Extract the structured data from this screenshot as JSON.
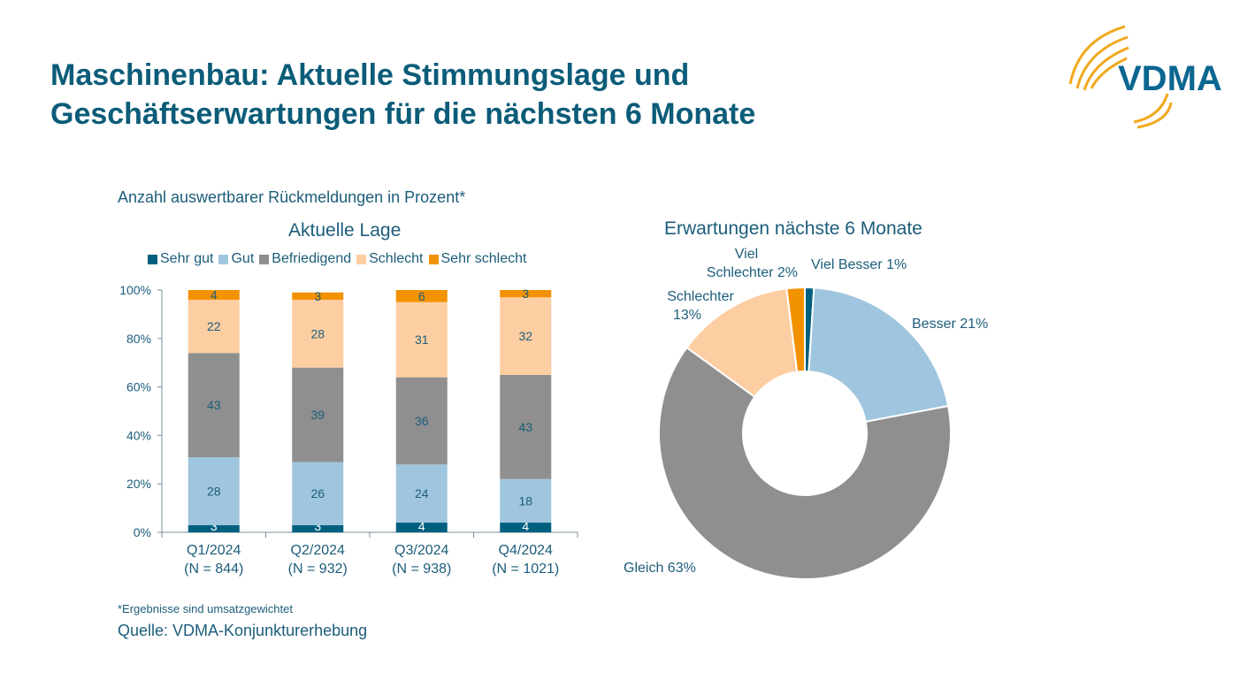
{
  "title_line1": "Maschinenbau: Aktuelle Stimmungslage und",
  "title_line2": "Geschäftserwartungen für die nächsten 6 Monate",
  "logo_text": "VDMA",
  "subtitle": "Anzahl auswertbarer Rückmeldungen in Prozent*",
  "footnote": "*Ergebnisse sind umsatzgewichtet",
  "source": "Quelle: VDMA-Konjunkturerhebung",
  "colors": {
    "sehr_gut": "#00607f",
    "gut": "#9fc6de",
    "befriedigend": "#8f8f8f",
    "schlecht": "#fdcea2",
    "sehr_schlecht": "#f39200",
    "text": "#1c5d7a",
    "title": "#0b5c78",
    "logo_arc": "#f0a81c"
  },
  "chart_data": [
    {
      "type": "bar",
      "stacked": true,
      "title": "Aktuelle Lage",
      "categories": [
        "Q1/2024",
        "Q2/2024",
        "Q3/2024",
        "Q4/2024"
      ],
      "category_sublabels": [
        "(N = 844)",
        "(N = 932)",
        "(N = 938)",
        "(N = 1021)"
      ],
      "ylim": [
        0,
        100
      ],
      "yticks": [
        "0%",
        "20%",
        "40%",
        "60%",
        "80%",
        "100%"
      ],
      "legend_placement": "top",
      "grid": false,
      "series": [
        {
          "name": "Sehr gut",
          "values": [
            3,
            3,
            4,
            4
          ]
        },
        {
          "name": "Gut",
          "values": [
            28,
            26,
            24,
            18
          ]
        },
        {
          "name": "Befriedigend",
          "values": [
            43,
            39,
            36,
            43
          ]
        },
        {
          "name": "Schlecht",
          "values": [
            22,
            28,
            31,
            32
          ]
        },
        {
          "name": "Sehr schlecht",
          "values": [
            4,
            3,
            6,
            3
          ]
        }
      ]
    },
    {
      "type": "pie",
      "donut": true,
      "title": "Erwartungen nächste 6 Monate",
      "slices": [
        {
          "label": "Viel Besser 1%",
          "value": 1
        },
        {
          "label": "Besser 21%",
          "value": 21
        },
        {
          "label": "Gleich  63%",
          "value": 63
        },
        {
          "label": "Schlechter 13%",
          "value": 13
        },
        {
          "label": "Viel Schlechter 2%",
          "value": 2
        }
      ]
    }
  ]
}
